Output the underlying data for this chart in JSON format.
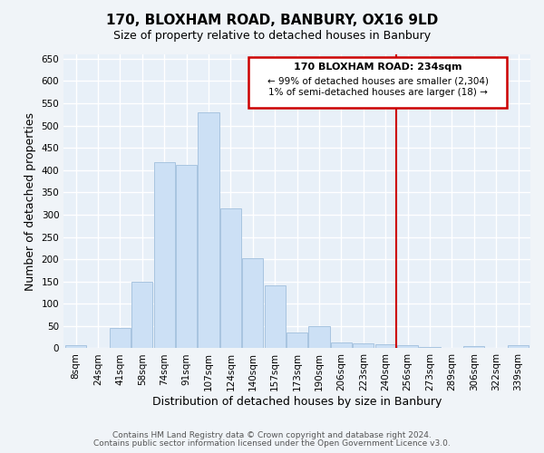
{
  "title": "170, BLOXHAM ROAD, BANBURY, OX16 9LD",
  "subtitle": "Size of property relative to detached houses in Banbury",
  "xlabel": "Distribution of detached houses by size in Banbury",
  "ylabel": "Number of detached properties",
  "bar_labels": [
    "8sqm",
    "24sqm",
    "41sqm",
    "58sqm",
    "74sqm",
    "91sqm",
    "107sqm",
    "124sqm",
    "140sqm",
    "157sqm",
    "173sqm",
    "190sqm",
    "206sqm",
    "223sqm",
    "240sqm",
    "256sqm",
    "273sqm",
    "289sqm",
    "306sqm",
    "322sqm",
    "339sqm"
  ],
  "bar_values": [
    8,
    0,
    45,
    150,
    418,
    412,
    530,
    315,
    203,
    142,
    35,
    50,
    13,
    12,
    10,
    7,
    3,
    0,
    5,
    0,
    7
  ],
  "bar_color": "#cce0f5",
  "bar_edge_color": "#a8c4e0",
  "ylim": [
    0,
    660
  ],
  "yticks": [
    0,
    50,
    100,
    150,
    200,
    250,
    300,
    350,
    400,
    450,
    500,
    550,
    600,
    650
  ],
  "vline_color": "#cc0000",
  "annotation_title": "170 BLOXHAM ROAD: 234sqm",
  "annotation_line1": "← 99% of detached houses are smaller (2,304)",
  "annotation_line2": "1% of semi-detached houses are larger (18) →",
  "footer_line1": "Contains HM Land Registry data © Crown copyright and database right 2024.",
  "footer_line2": "Contains public sector information licensed under the Open Government Licence v3.0.",
  "background_color": "#f0f4f8",
  "plot_bg_color": "#e8f0f8",
  "grid_color": "#ffffff",
  "title_fontsize": 11,
  "subtitle_fontsize": 9,
  "axis_label_fontsize": 9,
  "tick_fontsize": 7.5,
  "footer_fontsize": 6.5
}
